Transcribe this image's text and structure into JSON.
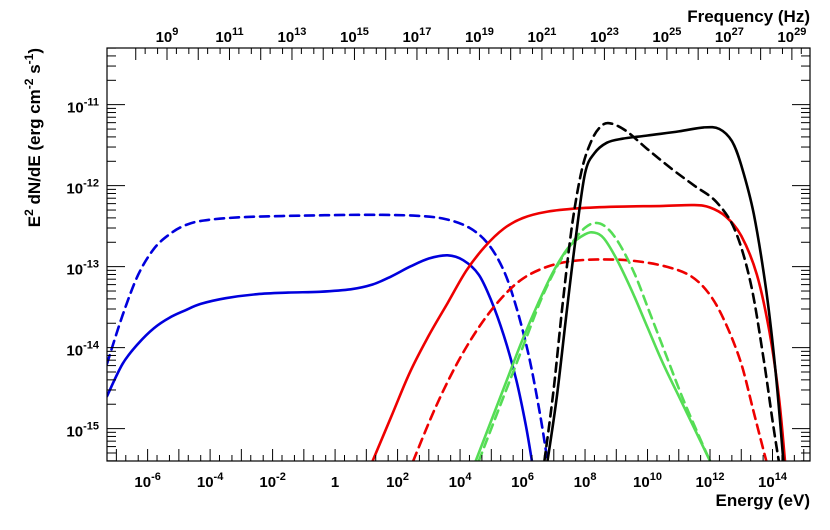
{
  "chart_data": {
    "type": "line",
    "xlabel": "Energy (eV)",
    "ylabel_base": "E",
    "ylabel_sup1": "2",
    "ylabel_mid": " dN/dE (erg cm",
    "ylabel_sup2": "-2",
    "ylabel_mid2": " s",
    "ylabel_sup3": "-1",
    "ylabel_end": ")",
    "x2label": "Frequency (Hz)",
    "xscale": "log",
    "yscale": "log",
    "xlim_log10": [
      -7.3,
      15.2
    ],
    "ylim_log10": [
      -15.4,
      -10.3
    ],
    "x2_offset_log10": 14.38,
    "grid": false,
    "x_ticks": [
      {
        "base": "10",
        "exp": "-6",
        "v": -6
      },
      {
        "base": "10",
        "exp": "-4",
        "v": -4
      },
      {
        "base": "10",
        "exp": "-2",
        "v": -2
      },
      {
        "base": "1",
        "exp": "",
        "v": 0
      },
      {
        "base": "10",
        "exp": "2",
        "v": 2
      },
      {
        "base": "10",
        "exp": "4",
        "v": 4
      },
      {
        "base": "10",
        "exp": "6",
        "v": 6
      },
      {
        "base": "10",
        "exp": "8",
        "v": 8
      },
      {
        "base": "10",
        "exp": "10",
        "v": 10
      },
      {
        "base": "10",
        "exp": "12",
        "v": 12
      },
      {
        "base": "10",
        "exp": "14",
        "v": 14
      }
    ],
    "y_ticks": [
      {
        "base": "10",
        "exp": "-15",
        "v": -15
      },
      {
        "base": "10",
        "exp": "-14",
        "v": -14
      },
      {
        "base": "10",
        "exp": "-13",
        "v": -13
      },
      {
        "base": "10",
        "exp": "-12",
        "v": -12
      },
      {
        "base": "10",
        "exp": "-11",
        "v": -11
      }
    ],
    "x2_ticks": [
      {
        "base": "10",
        "exp": "9",
        "v": 9
      },
      {
        "base": "10",
        "exp": "11",
        "v": 11
      },
      {
        "base": "10",
        "exp": "13",
        "v": 13
      },
      {
        "base": "10",
        "exp": "15",
        "v": 15
      },
      {
        "base": "10",
        "exp": "17",
        "v": 17
      },
      {
        "base": "10",
        "exp": "19",
        "v": 19
      },
      {
        "base": "10",
        "exp": "21",
        "v": 21
      },
      {
        "base": "10",
        "exp": "23",
        "v": 23
      },
      {
        "base": "10",
        "exp": "25",
        "v": 25
      },
      {
        "base": "10",
        "exp": "27",
        "v": 27
      },
      {
        "base": "10",
        "exp": "29",
        "v": 29
      }
    ],
    "series": [
      {
        "color": "#0000dd",
        "dash": false,
        "points": [
          [
            -7.3,
            -14.6
          ],
          [
            -6.8,
            -14.2
          ],
          [
            -6.3,
            -13.95
          ],
          [
            -5.8,
            -13.76
          ],
          [
            -5.3,
            -13.63
          ],
          [
            -4.8,
            -13.54
          ],
          [
            -4.3,
            -13.46
          ],
          [
            -3.5,
            -13.39
          ],
          [
            -2.5,
            -13.34
          ],
          [
            -1.5,
            -13.32
          ],
          [
            -0.5,
            -13.31
          ],
          [
            0.5,
            -13.28
          ],
          [
            1.2,
            -13.22
          ],
          [
            1.8,
            -13.12
          ],
          [
            2.4,
            -13.0
          ],
          [
            3.0,
            -12.9
          ],
          [
            3.6,
            -12.86
          ],
          [
            4.1,
            -12.92
          ],
          [
            4.6,
            -13.1
          ],
          [
            5.0,
            -13.42
          ],
          [
            5.4,
            -13.85
          ],
          [
            5.8,
            -14.4
          ],
          [
            6.1,
            -14.95
          ],
          [
            6.3,
            -15.4
          ]
        ]
      },
      {
        "color": "#0000dd",
        "dash": true,
        "points": [
          [
            -7.3,
            -14.2
          ],
          [
            -6.8,
            -13.6
          ],
          [
            -6.3,
            -13.1
          ],
          [
            -5.8,
            -12.78
          ],
          [
            -5.3,
            -12.6
          ],
          [
            -4.8,
            -12.49
          ],
          [
            -4.2,
            -12.43
          ],
          [
            -3.0,
            -12.39
          ],
          [
            -1.0,
            -12.37
          ],
          [
            1.0,
            -12.36
          ],
          [
            2.5,
            -12.37
          ],
          [
            3.5,
            -12.41
          ],
          [
            4.3,
            -12.52
          ],
          [
            4.9,
            -12.72
          ],
          [
            5.4,
            -13.05
          ],
          [
            5.8,
            -13.5
          ],
          [
            6.2,
            -14.1
          ],
          [
            6.55,
            -14.8
          ],
          [
            6.8,
            -15.4
          ]
        ]
      },
      {
        "color": "#ee0000",
        "dash": false,
        "points": [
          [
            1.2,
            -15.4
          ],
          [
            1.8,
            -14.85
          ],
          [
            2.4,
            -14.3
          ],
          [
            3.0,
            -13.85
          ],
          [
            3.6,
            -13.45
          ],
          [
            4.2,
            -13.05
          ],
          [
            4.8,
            -12.75
          ],
          [
            5.4,
            -12.53
          ],
          [
            6.0,
            -12.4
          ],
          [
            6.8,
            -12.32
          ],
          [
            7.8,
            -12.28
          ],
          [
            9.0,
            -12.26
          ],
          [
            10.5,
            -12.25
          ],
          [
            11.5,
            -12.24
          ],
          [
            12.0,
            -12.27
          ],
          [
            12.5,
            -12.38
          ],
          [
            13.0,
            -12.62
          ],
          [
            13.5,
            -13.1
          ],
          [
            13.9,
            -13.8
          ],
          [
            14.2,
            -14.6
          ],
          [
            14.4,
            -15.4
          ]
        ]
      },
      {
        "color": "#ee0000",
        "dash": true,
        "points": [
          [
            2.5,
            -15.4
          ],
          [
            3.2,
            -14.75
          ],
          [
            3.9,
            -14.2
          ],
          [
            4.6,
            -13.75
          ],
          [
            5.3,
            -13.4
          ],
          [
            6.0,
            -13.15
          ],
          [
            6.8,
            -13.0
          ],
          [
            7.6,
            -12.93
          ],
          [
            8.6,
            -12.91
          ],
          [
            9.6,
            -12.93
          ],
          [
            10.6,
            -13.0
          ],
          [
            11.4,
            -13.12
          ],
          [
            12.0,
            -13.35
          ],
          [
            12.5,
            -13.7
          ],
          [
            13.0,
            -14.2
          ],
          [
            13.4,
            -14.8
          ],
          [
            13.8,
            -15.4
          ]
        ]
      },
      {
        "color": "#55dd55",
        "dash": false,
        "points": [
          [
            4.5,
            -15.4
          ],
          [
            5.0,
            -14.9
          ],
          [
            5.5,
            -14.4
          ],
          [
            6.0,
            -13.9
          ],
          [
            6.5,
            -13.45
          ],
          [
            7.0,
            -13.05
          ],
          [
            7.5,
            -12.75
          ],
          [
            8.0,
            -12.6
          ],
          [
            8.3,
            -12.58
          ],
          [
            8.6,
            -12.65
          ],
          [
            9.0,
            -12.9
          ],
          [
            9.5,
            -13.3
          ],
          [
            10.0,
            -13.75
          ],
          [
            10.5,
            -14.2
          ],
          [
            11.0,
            -14.6
          ],
          [
            11.5,
            -15.0
          ],
          [
            12.0,
            -15.4
          ]
        ]
      },
      {
        "color": "#55dd55",
        "dash": true,
        "points": [
          [
            4.6,
            -15.4
          ],
          [
            5.1,
            -14.9
          ],
          [
            5.6,
            -14.4
          ],
          [
            6.1,
            -13.9
          ],
          [
            6.6,
            -13.4
          ],
          [
            7.1,
            -13.0
          ],
          [
            7.6,
            -12.7
          ],
          [
            8.0,
            -12.52
          ],
          [
            8.35,
            -12.46
          ],
          [
            8.7,
            -12.52
          ],
          [
            9.1,
            -12.72
          ],
          [
            9.6,
            -13.1
          ],
          [
            10.1,
            -13.6
          ],
          [
            10.6,
            -14.1
          ],
          [
            11.1,
            -14.6
          ],
          [
            11.6,
            -15.05
          ],
          [
            12.0,
            -15.4
          ]
        ]
      },
      {
        "color": "#000000",
        "dash": false,
        "points": [
          [
            6.8,
            -15.4
          ],
          [
            7.1,
            -14.6
          ],
          [
            7.4,
            -13.6
          ],
          [
            7.7,
            -12.65
          ],
          [
            8.0,
            -11.85
          ],
          [
            8.3,
            -11.6
          ],
          [
            8.7,
            -11.47
          ],
          [
            9.2,
            -11.42
          ],
          [
            10.0,
            -11.38
          ],
          [
            11.0,
            -11.33
          ],
          [
            11.8,
            -11.28
          ],
          [
            12.3,
            -11.3
          ],
          [
            12.7,
            -11.45
          ],
          [
            13.0,
            -11.75
          ],
          [
            13.4,
            -12.35
          ],
          [
            13.8,
            -13.3
          ],
          [
            14.1,
            -14.3
          ],
          [
            14.35,
            -15.4
          ]
        ]
      },
      {
        "color": "#000000",
        "dash": true,
        "points": [
          [
            6.7,
            -15.4
          ],
          [
            7.0,
            -14.5
          ],
          [
            7.3,
            -13.4
          ],
          [
            7.6,
            -12.45
          ],
          [
            7.9,
            -11.8
          ],
          [
            8.2,
            -11.45
          ],
          [
            8.5,
            -11.27
          ],
          [
            8.8,
            -11.23
          ],
          [
            9.3,
            -11.32
          ],
          [
            10.0,
            -11.55
          ],
          [
            10.8,
            -11.8
          ],
          [
            11.5,
            -12.0
          ],
          [
            12.2,
            -12.2
          ],
          [
            12.8,
            -12.55
          ],
          [
            13.3,
            -13.2
          ],
          [
            13.7,
            -14.1
          ],
          [
            14.0,
            -14.9
          ],
          [
            14.2,
            -15.4
          ]
        ]
      }
    ]
  }
}
